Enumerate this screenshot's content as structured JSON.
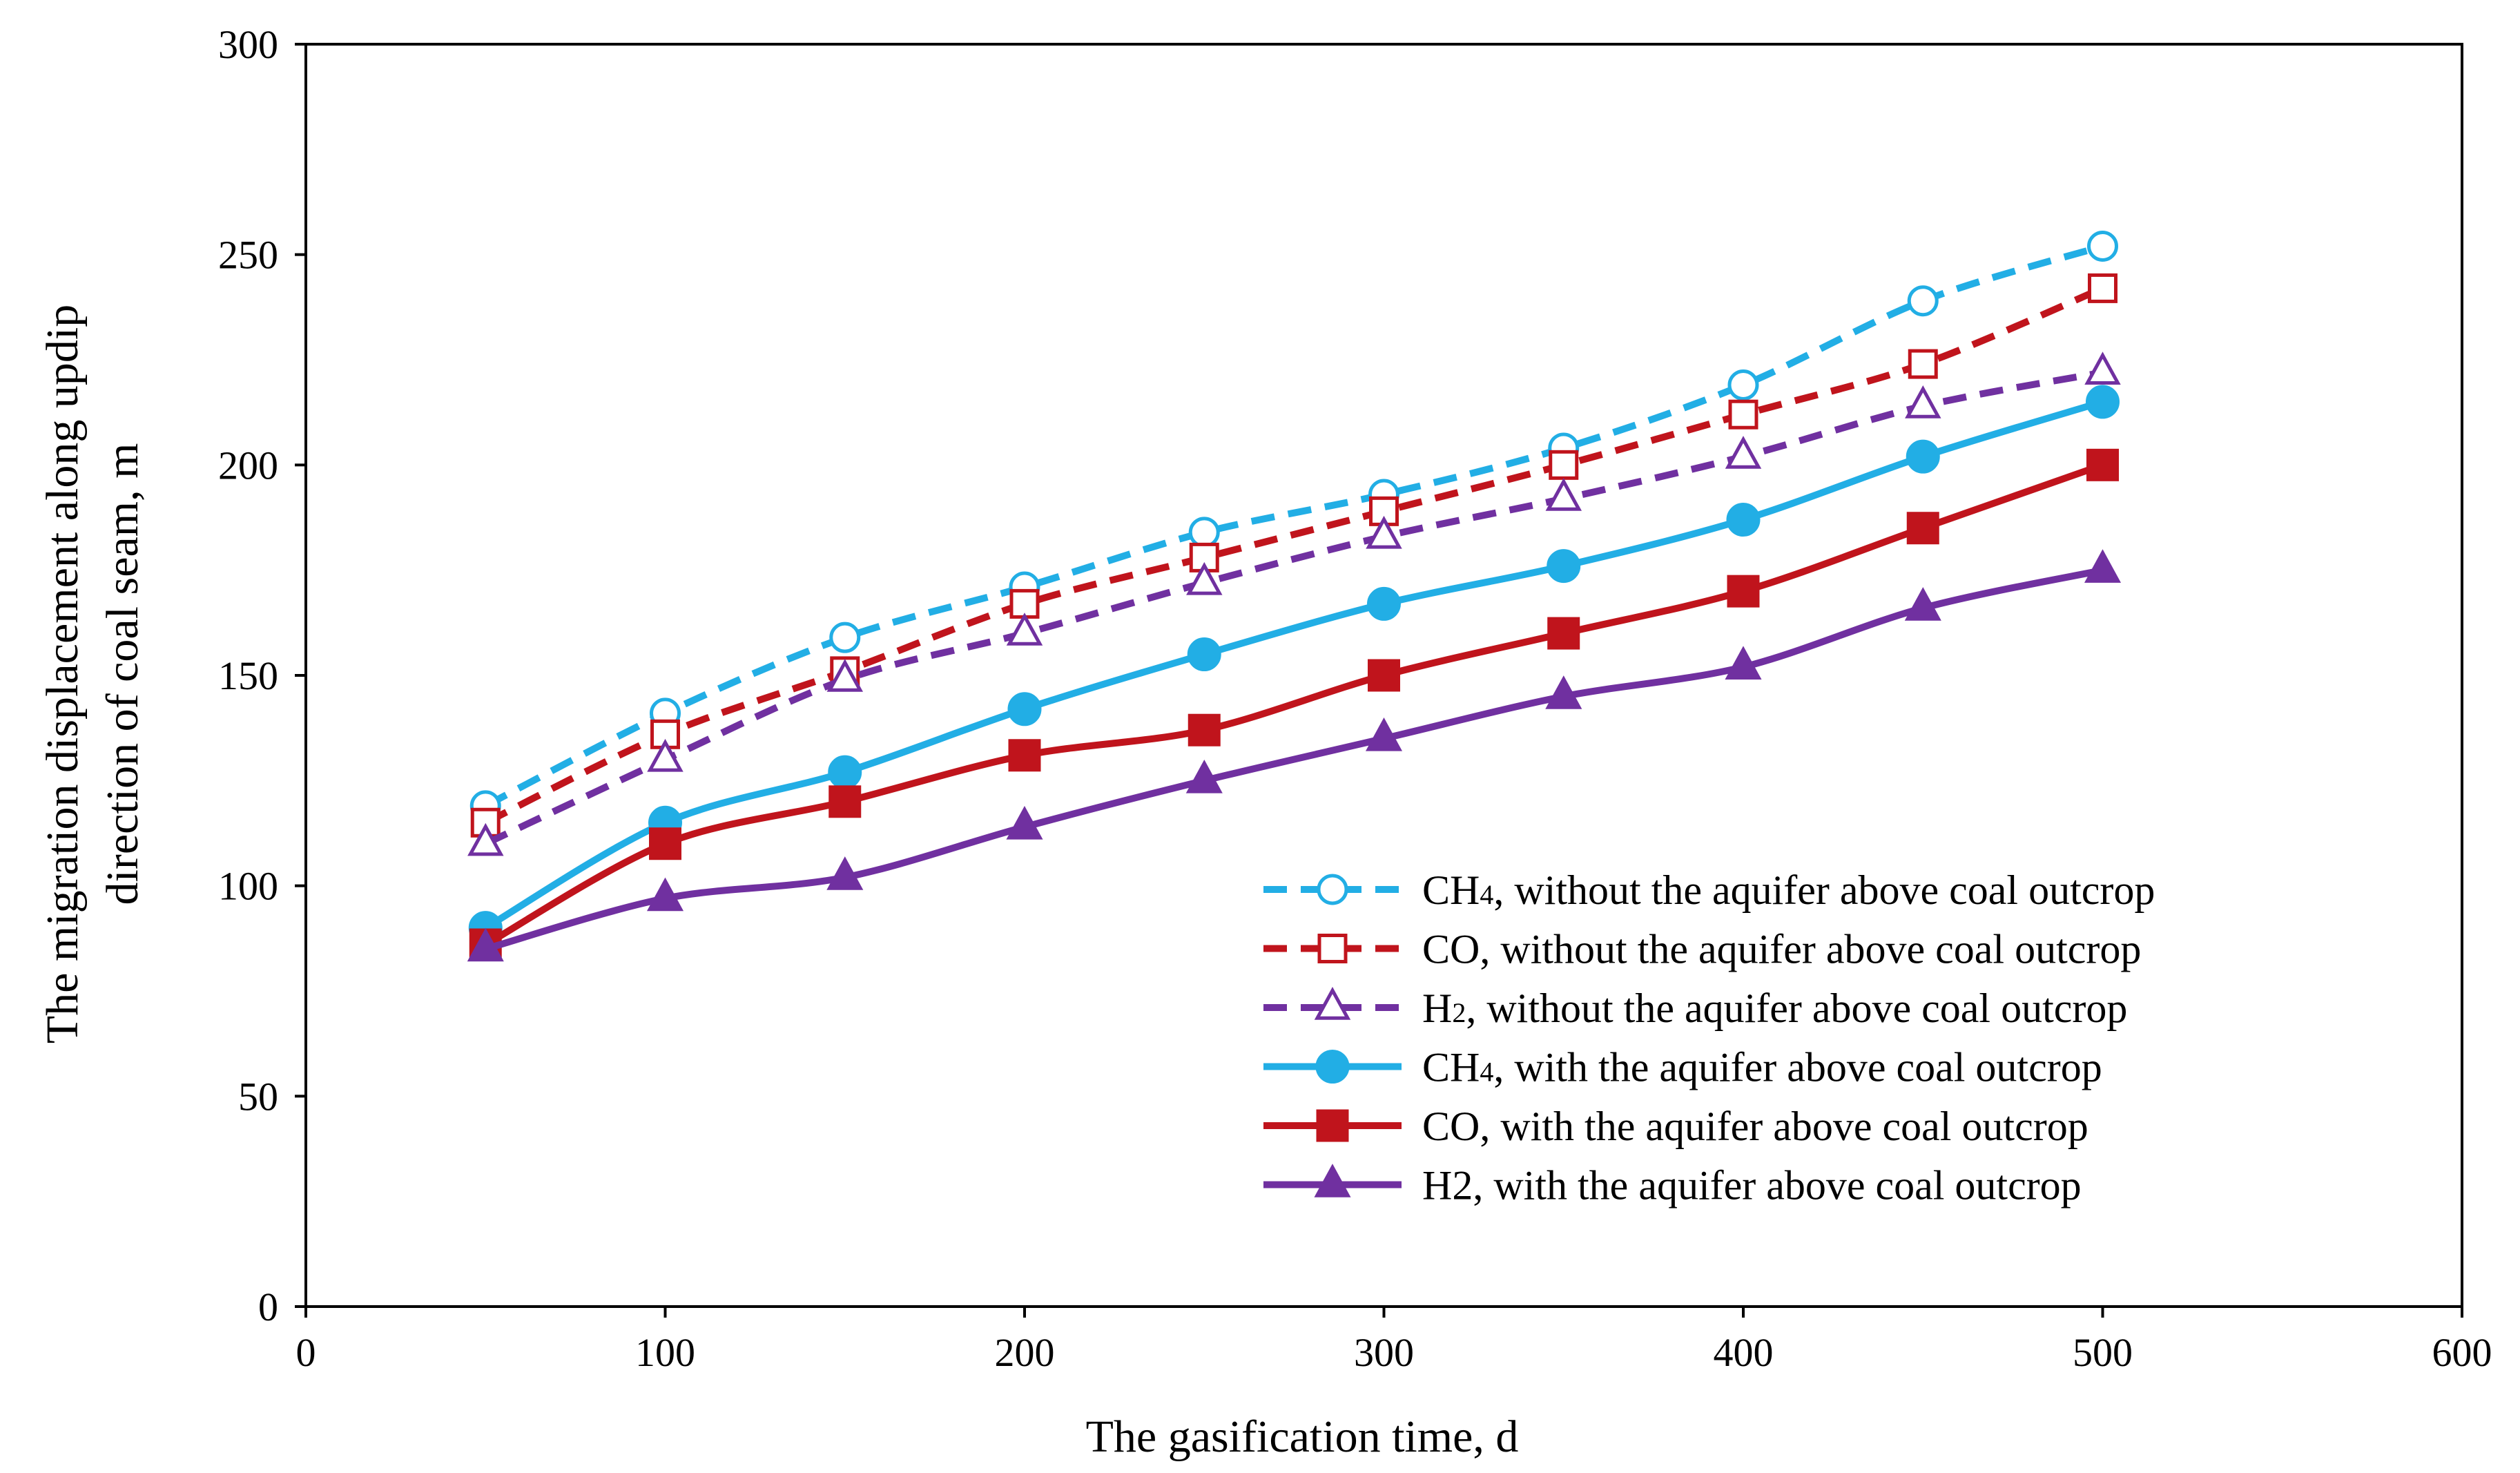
{
  "chart_data": {
    "type": "line",
    "title": "",
    "xlabel": "The gasification time, d",
    "ylabel_line1": "The migration displacement along updip",
    "ylabel_line2": "direction of coal seam, m",
    "xlim": [
      0,
      600
    ],
    "ylim": [
      0,
      300
    ],
    "x_ticks": [
      0,
      100,
      200,
      300,
      400,
      500,
      600
    ],
    "y_ticks": [
      0,
      50,
      100,
      150,
      200,
      250,
      300
    ],
    "grid": false,
    "legend_position": "bottom-right",
    "x": [
      50,
      100,
      150,
      200,
      250,
      300,
      350,
      400,
      450,
      500
    ],
    "series": [
      {
        "name": "CH4, without the aquifer above coal outcrop",
        "label_main": "CH",
        "label_sub": "4",
        "label_rest": ", without the aquifer above coal outcrop",
        "color": "#22aee5",
        "dashed": true,
        "marker": "circle-open",
        "values": [
          119,
          141,
          159,
          171,
          184,
          193,
          204,
          219,
          239,
          252
        ]
      },
      {
        "name": "CO, without the aquifer above coal outcrop",
        "label_main": "CO",
        "label_sub": "",
        "label_rest": ", without the aquifer above coal outcrop",
        "color": "#c0141c",
        "dashed": true,
        "marker": "square-open",
        "values": [
          115,
          136,
          151,
          167,
          178,
          189,
          200,
          212,
          224,
          242
        ]
      },
      {
        "name": "H2, without the aquifer above coal outcrop",
        "label_main": "H",
        "label_sub": "2",
        "label_rest": ", without the aquifer above coal outcrop",
        "color": "#7030a0",
        "dashed": true,
        "marker": "triangle-open",
        "values": [
          110,
          130,
          149,
          160,
          172,
          183,
          192,
          202,
          214,
          222
        ]
      },
      {
        "name": "CH4, with the aquifer above coal outcrop",
        "label_main": "CH",
        "label_sub": "4",
        "label_rest": ", with the aquifer above coal outcrop",
        "color": "#22aee5",
        "dashed": false,
        "marker": "circle-filled",
        "values": [
          90,
          115,
          127,
          142,
          155,
          167,
          176,
          187,
          202,
          215
        ]
      },
      {
        "name": "CO, with the aquifer above coal outcrop",
        "label_main": "CO",
        "label_sub": "",
        "label_rest": ", with the aquifer above coal outcrop",
        "color": "#c0141c",
        "dashed": false,
        "marker": "square-filled",
        "values": [
          86,
          110,
          120,
          131,
          137,
          150,
          160,
          170,
          185,
          200
        ]
      },
      {
        "name": "H2, with the aquifer above coal outcrop",
        "label_main": "H2",
        "label_sub": "",
        "label_rest": ", with the aquifer above coal outcrop",
        "color": "#7030a0",
        "dashed": false,
        "marker": "triangle-filled",
        "values": [
          85,
          97,
          102,
          114,
          125,
          135,
          145,
          152,
          166,
          175
        ]
      }
    ]
  }
}
